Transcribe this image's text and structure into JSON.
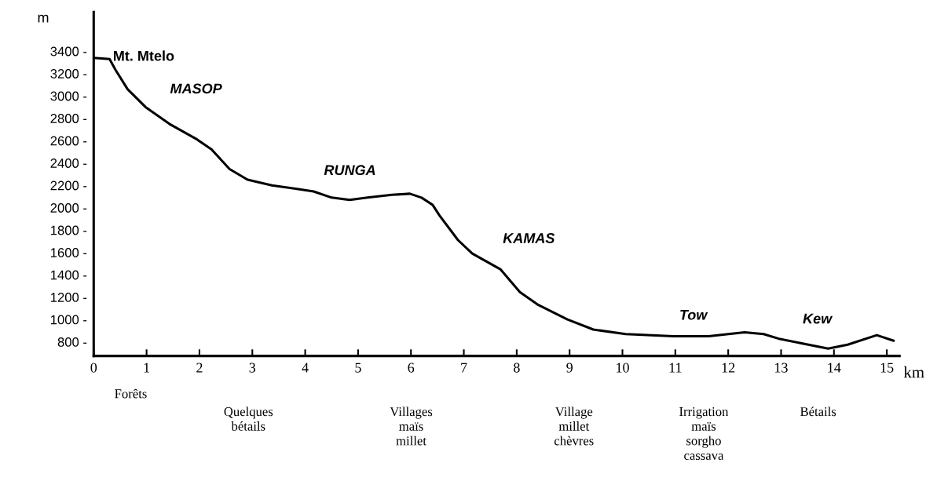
{
  "chart_data": {
    "type": "line",
    "x": [
      0,
      0.3,
      0.41,
      0.64,
      0.98,
      1.43,
      1.94,
      2.23,
      2.57,
      2.91,
      3.37,
      3.82,
      4.16,
      4.5,
      4.84,
      5.18,
      5.64,
      5.98,
      6.2,
      6.41,
      6.54,
      6.89,
      7.16,
      7.69,
      8.06,
      8.41,
      8.96,
      9.45,
      10.06,
      10.96,
      11.63,
      12.31,
      12.67,
      12.98,
      13.46,
      13.89,
      14.26,
      14.81,
      15.13
    ],
    "series": [
      {
        "color": "#000000",
        "values": [
          3340,
          3330,
          3235,
          3060,
          2900,
          2750,
          2615,
          2520,
          2345,
          2250,
          2200,
          2170,
          2145,
          2090,
          2070,
          2090,
          2115,
          2125,
          2090,
          2025,
          1930,
          1710,
          1590,
          1450,
          1245,
          1130,
          1000,
          910,
          870,
          850,
          850,
          885,
          870,
          825,
          780,
          740,
          775,
          860,
          810
        ]
      }
    ],
    "xlabel": "km",
    "ylabel": "m",
    "xlim": [
      0,
      15.24
    ],
    "ylim": [
      674,
      3750
    ],
    "xticks": [
      0,
      1,
      2,
      3,
      4,
      5,
      6,
      7,
      8,
      9,
      10,
      11,
      12,
      13,
      14,
      15
    ],
    "yticks": [
      {
        "value": 800,
        "label": "800 -"
      },
      {
        "value": 1000,
        "label": "1000 -"
      },
      {
        "value": 1200,
        "label": "1200 -"
      },
      {
        "value": 1400,
        "label": "1400 -"
      },
      {
        "value": 1600,
        "label": "1600 -"
      },
      {
        "value": 1800,
        "label": "1800 -"
      },
      {
        "value": 2000,
        "label": "2000 -"
      },
      {
        "value": 2200,
        "label": "2200 -"
      },
      {
        "value": 2400,
        "label": "2400 -"
      },
      {
        "value": 2600,
        "label": "2600 -"
      },
      {
        "value": 2800,
        "label": "2800 -"
      },
      {
        "value": 3000,
        "label": "3000 -"
      },
      {
        "value": 3200,
        "label": "3200 -"
      },
      {
        "value": 3400,
        "label": "3400 -"
      }
    ],
    "grid": false,
    "legend": false,
    "marker": "none",
    "line_style": "solid",
    "annotations": [
      "Mt. Mtelo",
      "MASOP",
      "RUNGA",
      "KAMAS",
      "Tow",
      "Kew",
      "Forêts",
      "Quelques\nbétails",
      "Villages\nmaïs\nmillet",
      "Village\nmillet\nchèvres",
      "Irrigation\nmaïs\nsorgho\ncassava",
      "Bétails"
    ]
  }
}
